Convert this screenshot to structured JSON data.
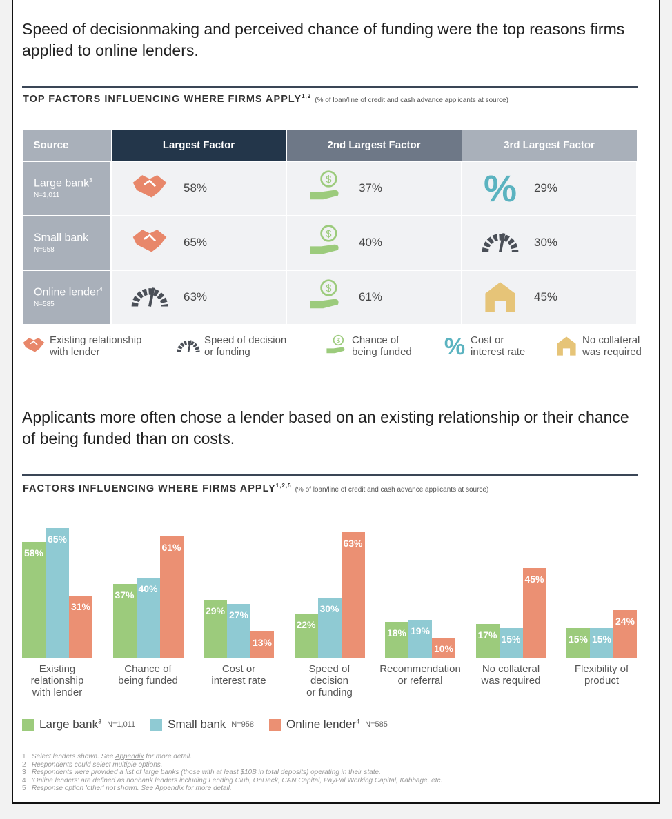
{
  "headline1": "Speed of decisionmaking and perceived chance of funding were the top reasons firms applied to online lenders.",
  "table_section": {
    "title": "TOP FACTORS INFLUENCING WHERE FIRMS APPLY",
    "sup": "1,2",
    "subtitle": "(% of loan/line of credit and cash advance applicants at source)"
  },
  "table": {
    "headers": [
      "Source",
      "Largest Factor",
      "2nd Largest Factor",
      "3rd Largest Factor"
    ],
    "header_colors": [
      "#a9b0ba",
      "#23364a",
      "#6e7887",
      "#a9b0ba"
    ],
    "rows": [
      {
        "source": "Large bank",
        "sup": "3",
        "n": "N=1,011",
        "cells": [
          {
            "icon": "handshake",
            "value": "58%"
          },
          {
            "icon": "money-hand",
            "value": "37%"
          },
          {
            "icon": "percent",
            "value": "29%"
          }
        ]
      },
      {
        "source": "Small bank",
        "sup": "",
        "n": "N=958",
        "cells": [
          {
            "icon": "handshake",
            "value": "65%"
          },
          {
            "icon": "money-hand",
            "value": "40%"
          },
          {
            "icon": "speedometer",
            "value": "30%"
          }
        ]
      },
      {
        "source": "Online lender",
        "sup": "4",
        "n": "N=585",
        "cells": [
          {
            "icon": "speedometer",
            "value": "63%"
          },
          {
            "icon": "money-hand",
            "value": "61%"
          },
          {
            "icon": "house",
            "value": "45%"
          }
        ]
      }
    ]
  },
  "icon_legend": [
    {
      "icon": "handshake",
      "l1": "Existing relationship",
      "l2": "with lender"
    },
    {
      "icon": "speedometer",
      "l1": "Speed of decision",
      "l2": "or funding"
    },
    {
      "icon": "money-hand",
      "l1": "Chance of",
      "l2": "being funded"
    },
    {
      "icon": "percent",
      "l1": "Cost or",
      "l2": "interest rate"
    },
    {
      "icon": "house",
      "l1": "No collateral",
      "l2": "was required"
    }
  ],
  "icon_colors": {
    "handshake": "#e8876a",
    "speedometer": "#4a4f57",
    "money-hand": "#9ccb7c",
    "percent": "#5bb3c0",
    "house": "#e6c478"
  },
  "headline2": "Applicants more often chose a lender based on an existing relationship or their chance of being funded than on costs.",
  "chart_data": {
    "type": "bar",
    "title": "FACTORS INFLUENCING WHERE FIRMS APPLY",
    "title_sup": "1,2,5",
    "subtitle": "(% of loan/line of credit and cash advance applicants at source)",
    "categories": [
      [
        "Existing",
        "relationship",
        "with lender"
      ],
      [
        "Chance of",
        "being funded"
      ],
      [
        "Cost or",
        "interest rate"
      ],
      [
        "Speed of",
        "decision",
        "or funding"
      ],
      [
        "Recommendation",
        "or referral"
      ],
      [
        "No collateral",
        "was required"
      ],
      [
        "Flexibility of",
        "product"
      ]
    ],
    "series": [
      {
        "name": "Large bank",
        "sup": "3",
        "n": "N=1,011",
        "color": "#9ccb7c",
        "values": [
          58,
          37,
          29,
          22,
          18,
          17,
          15
        ]
      },
      {
        "name": "Small bank",
        "sup": "",
        "n": "N=958",
        "color": "#8fcad3",
        "values": [
          65,
          40,
          27,
          30,
          19,
          15,
          15
        ]
      },
      {
        "name": "Online lender",
        "sup": "4",
        "n": "N=585",
        "color": "#eb9073",
        "values": [
          31,
          61,
          13,
          63,
          10,
          45,
          24
        ]
      }
    ],
    "ylim": [
      0,
      65
    ],
    "grid": false,
    "legend": "bottom-left",
    "value_suffix": "%"
  },
  "footnotes": [
    {
      "n": "1",
      "pre": "Select lenders shown. See ",
      "link": "Appendix",
      "post": " for more detail."
    },
    {
      "n": "2",
      "pre": "Respondents could select multiple options.",
      "link": "",
      "post": ""
    },
    {
      "n": "3",
      "pre": "Respondents were provided a list of large banks (those with at least $10B in total deposits) operating in their state.",
      "link": "",
      "post": ""
    },
    {
      "n": "4",
      "pre": "'Online lenders' are defined as nonbank lenders including Lending Club, OnDeck, CAN Capital, PayPal Working Capital, Kabbage, etc.",
      "link": "",
      "post": ""
    },
    {
      "n": "5",
      "pre": "Response option 'other' not shown. See ",
      "link": "Appendix",
      "post": " for more detail."
    }
  ]
}
